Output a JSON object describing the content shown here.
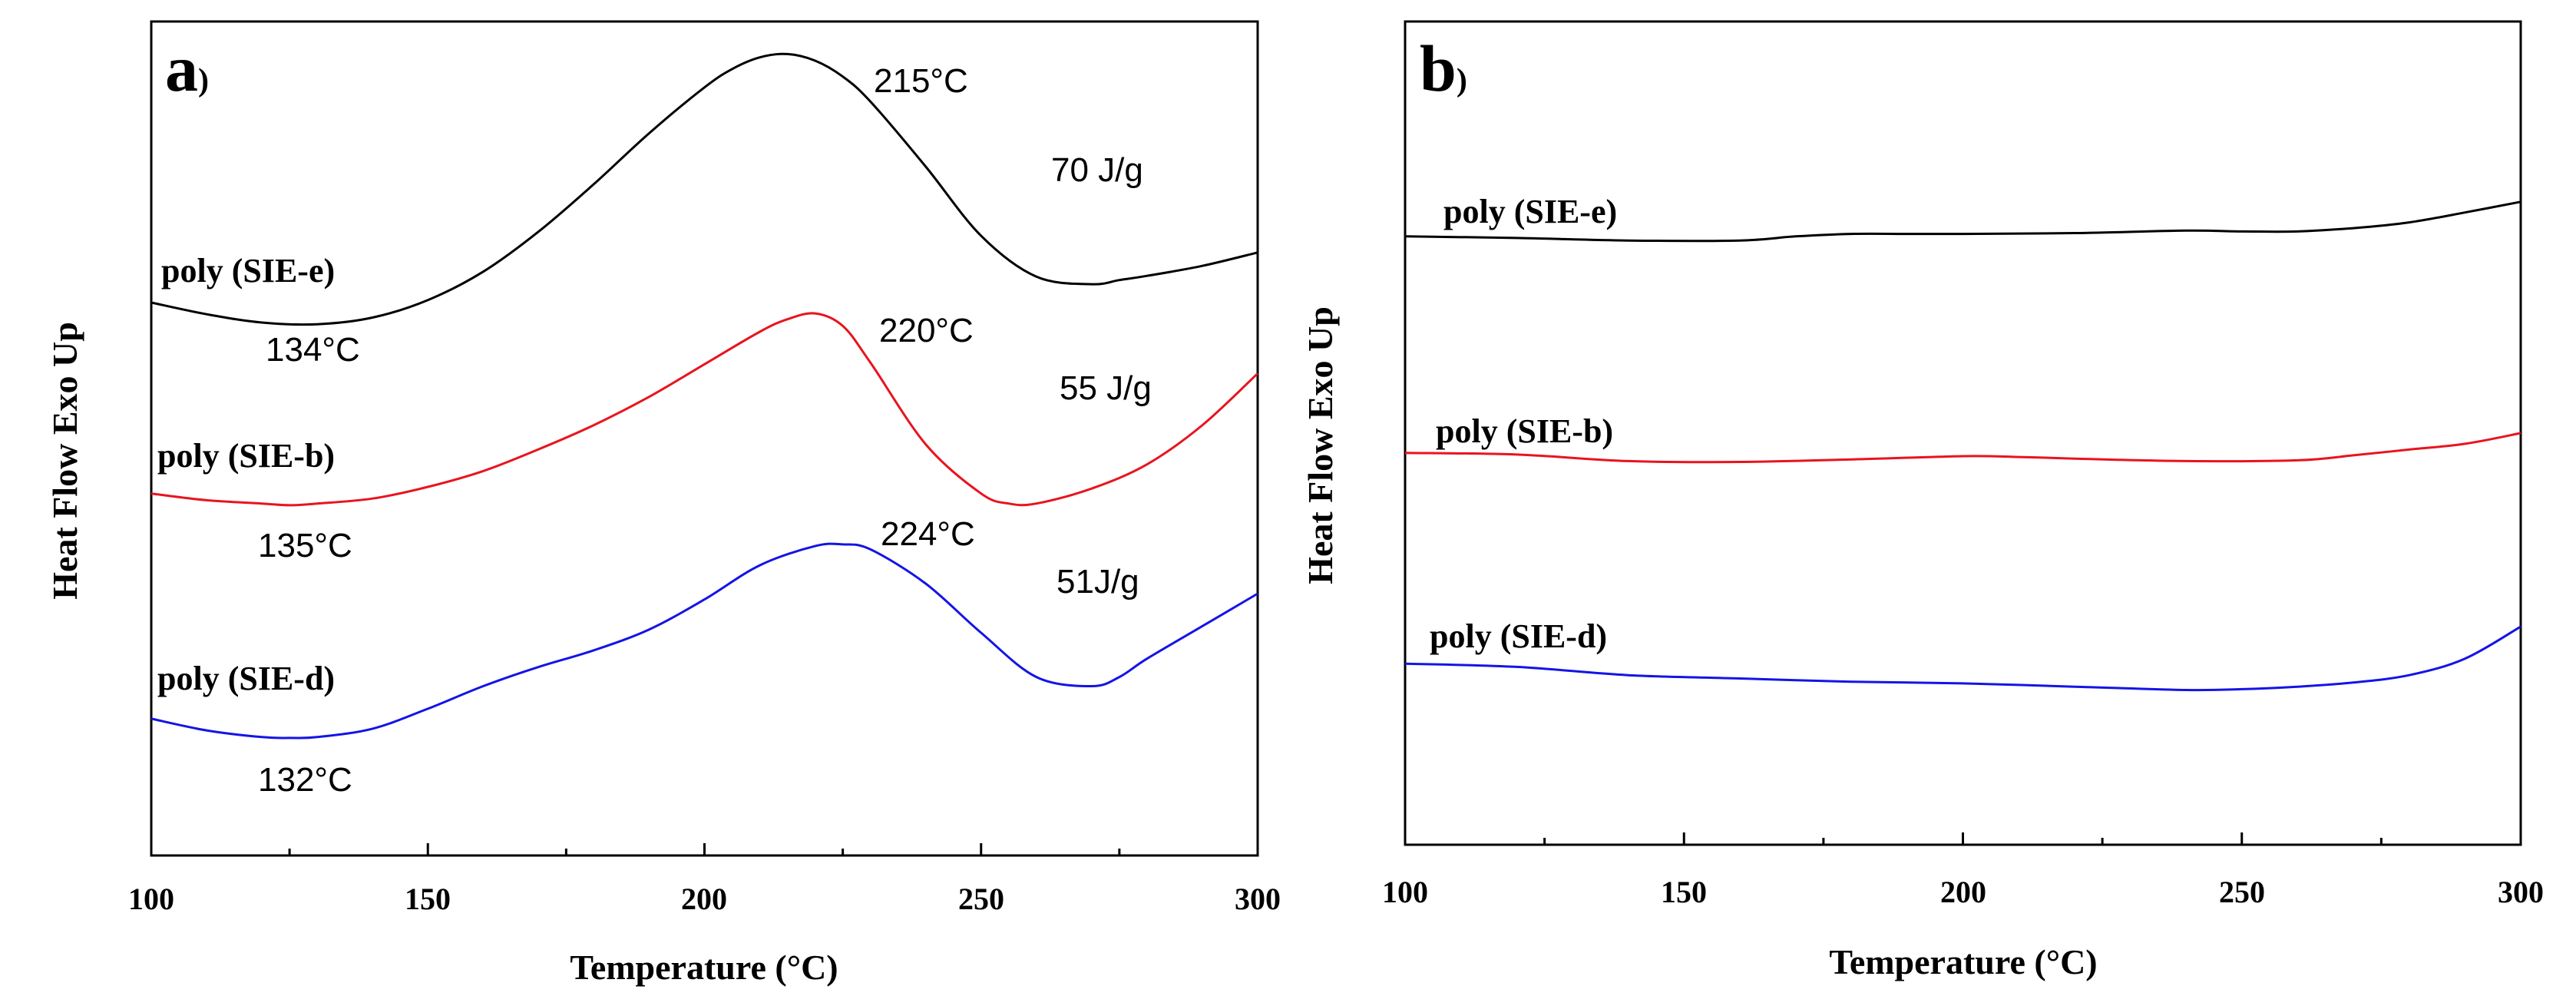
{
  "chart_data": [
    {
      "type": "line",
      "panel_label": "a",
      "panel_label_suffix": ")",
      "xlabel": "Temperature (°C)",
      "ylabel": "Heat Flow Exo Up",
      "xlim": [
        100,
        300
      ],
      "ylim": [
        0,
        100
      ],
      "x_ticks": [
        100,
        150,
        200,
        250,
        300
      ],
      "x_tick_labels": [
        "100",
        "150",
        "200",
        "250",
        "300"
      ],
      "series": [
        {
          "name": "poly (SIE-e)",
          "color": "#000000",
          "x": [
            100,
            110,
            120,
            130,
            140,
            150,
            160,
            170,
            180,
            190,
            200,
            205,
            210,
            215,
            220,
            225,
            230,
            240,
            250,
            260,
            270,
            275,
            280,
            290,
            300
          ],
          "y": [
            66.3,
            64.9,
            63.9,
            63.7,
            64.5,
            66.6,
            70.0,
            74.8,
            80.5,
            86.6,
            92.1,
            94.3,
            95.7,
            96.1,
            95.3,
            93.4,
            90.4,
            82.6,
            74.3,
            69.4,
            68.5,
            69.0,
            69.5,
            70.7,
            72.3
          ]
        },
        {
          "name": "poly (SIE-b)",
          "color": "#e8141e",
          "x": [
            100,
            110,
            120,
            125,
            130,
            140,
            150,
            160,
            170,
            180,
            190,
            200,
            210,
            215,
            220,
            225,
            230,
            240,
            250,
            255,
            260,
            270,
            280,
            290,
            300
          ],
          "y": [
            43.4,
            42.6,
            42.2,
            42.0,
            42.2,
            42.8,
            44.2,
            46.1,
            48.7,
            51.6,
            55.0,
            58.9,
            62.8,
            64.3,
            65.0,
            63.5,
            59.1,
            49.3,
            43.4,
            42.2,
            42.2,
            44.0,
            46.9,
            51.6,
            57.8
          ]
        },
        {
          "name": "poly (SIE-d)",
          "color": "#1414e6",
          "x": [
            100,
            110,
            120,
            125,
            130,
            140,
            150,
            160,
            170,
            180,
            190,
            200,
            210,
            220,
            225,
            230,
            240,
            250,
            260,
            270,
            275,
            280,
            290,
            300
          ],
          "y": [
            16.4,
            15.0,
            14.2,
            14.1,
            14.2,
            15.2,
            17.6,
            20.3,
            22.6,
            24.6,
            27.1,
            30.7,
            34.8,
            37.1,
            37.3,
            36.7,
            32.6,
            26.7,
            21.4,
            20.3,
            21.4,
            23.6,
            27.5,
            31.4
          ]
        }
      ],
      "annotations": [
        {
          "text": "215°C",
          "x": 222,
          "y": 93
        },
        {
          "text": "70 J/g",
          "x": 274,
          "y": 82
        },
        {
          "text": "134°C",
          "x": 132,
          "y": 59
        },
        {
          "text": "220°C",
          "x": 226,
          "y": 61
        },
        {
          "text": "55 J/g",
          "x": 275,
          "y": 55
        },
        {
          "text": "135°C",
          "x": 130,
          "y": 37
        },
        {
          "text": "224°C",
          "x": 227,
          "y": 38
        },
        {
          "text": "51J/g",
          "x": 272,
          "y": 32
        },
        {
          "text": "132°C",
          "x": 130,
          "y": 9
        }
      ],
      "series_labels": [
        {
          "text": "poly (SIE-e)",
          "x": 103,
          "y": 68
        },
        {
          "text": "poly (SIE-b)",
          "x": 102,
          "y": 46
        },
        {
          "text": "poly (SIE-d)",
          "x": 102,
          "y": 20
        }
      ]
    },
    {
      "type": "line",
      "panel_label": "b",
      "panel_label_suffix": ")",
      "xlabel": "Temperature (°C)",
      "ylabel": "Heat Flow Exo Up",
      "xlim": [
        100,
        300
      ],
      "ylim": [
        0,
        100
      ],
      "x_ticks": [
        100,
        150,
        200,
        250,
        300
      ],
      "x_tick_labels": [
        "100",
        "150",
        "200",
        "250",
        "300"
      ],
      "series": [
        {
          "name": "poly (SIE-e)",
          "color": "#000000",
          "x": [
            100,
            120,
            140,
            160,
            170,
            180,
            190,
            200,
            220,
            240,
            250,
            260,
            270,
            280,
            290,
            300
          ],
          "y": [
            73.9,
            73.7,
            73.4,
            73.4,
            73.9,
            74.2,
            74.2,
            74.2,
            74.3,
            74.6,
            74.5,
            74.5,
            74.9,
            75.6,
            76.8,
            78.1
          ]
        },
        {
          "name": "poly (SIE-b)",
          "color": "#e8141e",
          "x": [
            100,
            120,
            140,
            160,
            180,
            200,
            210,
            220,
            240,
            260,
            270,
            280,
            290,
            300
          ],
          "y": [
            47.6,
            47.4,
            46.6,
            46.5,
            46.8,
            47.2,
            47.1,
            46.9,
            46.6,
            46.7,
            47.3,
            48.0,
            48.7,
            50.0
          ]
        },
        {
          "name": "poly (SIE-d)",
          "color": "#1414e6",
          "x": [
            100,
            120,
            140,
            160,
            180,
            200,
            220,
            240,
            250,
            260,
            270,
            280,
            290,
            300
          ],
          "y": [
            22.0,
            21.6,
            20.6,
            20.2,
            19.8,
            19.6,
            19.2,
            18.8,
            18.9,
            19.2,
            19.7,
            20.6,
            22.6,
            26.5
          ]
        }
      ],
      "series_labels": [
        {
          "text": "poly (SIE-e)",
          "x": 107,
          "y": 78
        },
        {
          "text": "poly (SIE-b)",
          "x": 105,
          "y": 52
        },
        {
          "text": "poly (SIE-d)",
          "x": 104,
          "y": 26
        }
      ]
    }
  ]
}
